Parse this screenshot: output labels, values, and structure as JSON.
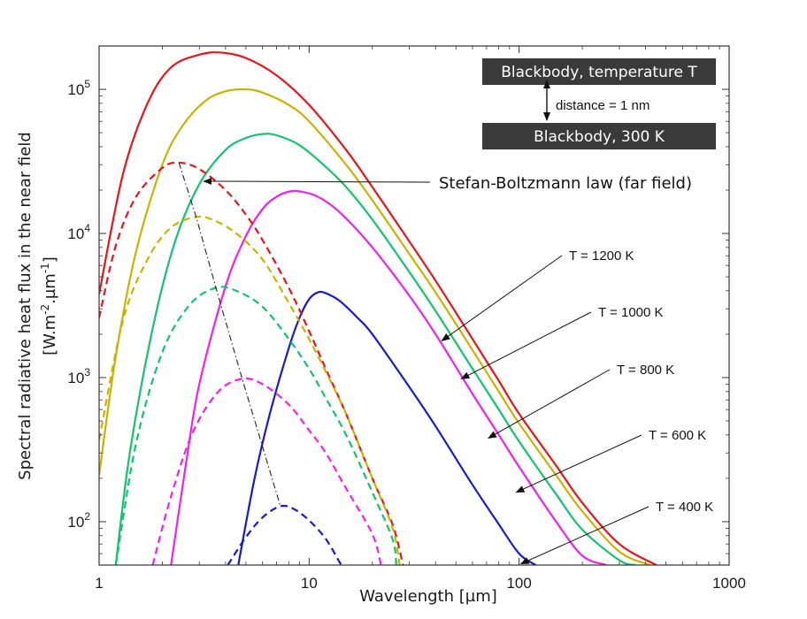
{
  "chart_data": {
    "type": "line",
    "xlabel": "Wavelength [µm]",
    "ylabel_line1": "Spectral radiative heat flux in the near field",
    "ylabel_line2_parts": [
      "[W.m",
      "-2",
      ".µm",
      "-1",
      "]"
    ],
    "x_scale": "log",
    "y_scale": "log",
    "xlim": [
      1,
      1000
    ],
    "ylim": [
      50,
      200000
    ],
    "grid": false,
    "x_ticks": [
      {
        "value": 1,
        "label": "1"
      },
      {
        "value": 10,
        "label": "10"
      },
      {
        "value": 100,
        "label": "100"
      },
      {
        "value": 1000,
        "label": "1000"
      }
    ],
    "y_ticks": [
      {
        "value": 100,
        "base": "10",
        "exp": "2"
      },
      {
        "value": 1000,
        "base": "10",
        "exp": "3"
      },
      {
        "value": 10000,
        "base": "10",
        "exp": "4"
      },
      {
        "value": 100000,
        "base": "10",
        "exp": "5"
      }
    ],
    "series": [
      {
        "temperature": 1200,
        "color": "#e8141c",
        "style": "solid",
        "points": [
          [
            1,
            3800
          ],
          [
            1.3,
            26000
          ],
          [
            1.7,
            80000
          ],
          [
            2.2,
            142000
          ],
          [
            3,
            174000
          ],
          [
            3.8,
            180000
          ],
          [
            5,
            165000
          ],
          [
            7,
            125000
          ],
          [
            10,
            78000
          ],
          [
            15,
            38000
          ],
          [
            20,
            21000
          ],
          [
            30,
            8800
          ],
          [
            40,
            4700
          ],
          [
            60,
            1850
          ],
          [
            80,
            950
          ],
          [
            100,
            560
          ],
          [
            150,
            245
          ],
          [
            200,
            135
          ],
          [
            300,
            70
          ],
          [
            450,
            50
          ]
        ]
      },
      {
        "temperature": 1000,
        "color": "#c8b400",
        "style": "solid",
        "points": [
          [
            1,
            210
          ],
          [
            1.2,
            1400
          ],
          [
            1.5,
            7500
          ],
          [
            2,
            30000
          ],
          [
            2.5,
            56000
          ],
          [
            3.2,
            83000
          ],
          [
            4,
            97000
          ],
          [
            5,
            100000
          ],
          [
            6,
            95000
          ],
          [
            8,
            78000
          ],
          [
            10,
            60000
          ],
          [
            15,
            30000
          ],
          [
            20,
            17000
          ],
          [
            30,
            7200
          ],
          [
            40,
            3900
          ],
          [
            60,
            1550
          ],
          [
            80,
            800
          ],
          [
            100,
            480
          ],
          [
            150,
            210
          ],
          [
            200,
            118
          ],
          [
            300,
            62
          ],
          [
            420,
            50
          ]
        ]
      },
      {
        "temperature": 800,
        "color": "#12c46e",
        "style": "solid",
        "points": [
          [
            1.2,
            50
          ],
          [
            1.4,
            300
          ],
          [
            1.8,
            2200
          ],
          [
            2.3,
            8800
          ],
          [
            3,
            22000
          ],
          [
            4,
            38000
          ],
          [
            5,
            46000
          ],
          [
            6,
            49000
          ],
          [
            7,
            48000
          ],
          [
            9,
            41000
          ],
          [
            12,
            29000
          ],
          [
            15,
            21000
          ],
          [
            20,
            12500
          ],
          [
            30,
            5400
          ],
          [
            40,
            2900
          ],
          [
            60,
            1150
          ],
          [
            80,
            600
          ],
          [
            100,
            360
          ],
          [
            150,
            155
          ],
          [
            200,
            88
          ],
          [
            300,
            54
          ],
          [
            360,
            50
          ]
        ]
      },
      {
        "temperature": 600,
        "color": "#ee22ee",
        "style": "solid",
        "points": [
          [
            2.2,
            50
          ],
          [
            2.6,
            260
          ],
          [
            3,
            900
          ],
          [
            4,
            4300
          ],
          [
            5,
            9600
          ],
          [
            6,
            14800
          ],
          [
            7,
            18000
          ],
          [
            8,
            19500
          ],
          [
            9,
            19600
          ],
          [
            11,
            18000
          ],
          [
            14,
            14000
          ],
          [
            20,
            8000
          ],
          [
            30,
            3700
          ],
          [
            40,
            2000
          ],
          [
            60,
            770
          ],
          [
            80,
            400
          ],
          [
            100,
            240
          ],
          [
            150,
            100
          ],
          [
            200,
            58
          ],
          [
            260,
            50
          ]
        ]
      },
      {
        "temperature": 400,
        "color": "#1a1acc",
        "style": "solid",
        "points": [
          [
            4.6,
            50
          ],
          [
            5.5,
            200
          ],
          [
            6.5,
            560
          ],
          [
            8,
            1600
          ],
          [
            9,
            2600
          ],
          [
            10,
            3500
          ],
          [
            11,
            3900
          ],
          [
            12,
            3850
          ],
          [
            14,
            3400
          ],
          [
            17,
            2600
          ],
          [
            20,
            2000
          ],
          [
            30,
            860
          ],
          [
            40,
            460
          ],
          [
            60,
            180
          ],
          [
            80,
            96
          ],
          [
            100,
            60
          ],
          [
            120,
            50
          ]
        ]
      },
      {
        "temperature": 1200,
        "color": "#e8141c",
        "style": "dashed",
        "points": [
          [
            1,
            2600
          ],
          [
            1.2,
            8200
          ],
          [
            1.5,
            18000
          ],
          [
            2,
            28500
          ],
          [
            2.4,
            31000
          ],
          [
            3,
            28000
          ],
          [
            4,
            20000
          ],
          [
            5,
            13500
          ],
          [
            6,
            9000
          ],
          [
            8,
            4200
          ],
          [
            10,
            2100
          ],
          [
            12,
            1150
          ],
          [
            15,
            560
          ],
          [
            20,
            200
          ],
          [
            25,
            95
          ],
          [
            28,
            50
          ]
        ]
      },
      {
        "temperature": 1000,
        "color": "#c8b400",
        "style": "dashed",
        "points": [
          [
            1,
            370
          ],
          [
            1.3,
            2500
          ],
          [
            1.7,
            6600
          ],
          [
            2.2,
            11000
          ],
          [
            2.9,
            13000
          ],
          [
            3.5,
            12400
          ],
          [
            4.5,
            10000
          ],
          [
            6,
            6600
          ],
          [
            8,
            3300
          ],
          [
            10,
            1850
          ],
          [
            12,
            1100
          ],
          [
            15,
            560
          ],
          [
            20,
            200
          ],
          [
            25,
            90
          ],
          [
            27,
            50
          ]
        ]
      },
      {
        "temperature": 800,
        "color": "#12c46e",
        "style": "dashed",
        "points": [
          [
            1.2,
            50
          ],
          [
            1.5,
            350
          ],
          [
            2,
            1500
          ],
          [
            2.7,
            3200
          ],
          [
            3.6,
            4200
          ],
          [
            4.5,
            4000
          ],
          [
            6,
            3100
          ],
          [
            8,
            1850
          ],
          [
            10,
            1150
          ],
          [
            12,
            720
          ],
          [
            15,
            400
          ],
          [
            20,
            160
          ],
          [
            25,
            75
          ],
          [
            26,
            50
          ]
        ]
      },
      {
        "temperature": 600,
        "color": "#ee22ee",
        "style": "dashed",
        "points": [
          [
            1.8,
            50
          ],
          [
            2.2,
            150
          ],
          [
            2.8,
            420
          ],
          [
            3.7,
            800
          ],
          [
            4.8,
            980
          ],
          [
            6,
            900
          ],
          [
            8,
            650
          ],
          [
            10,
            430
          ],
          [
            12,
            300
          ],
          [
            15,
            170
          ],
          [
            20,
            82
          ],
          [
            22,
            50
          ]
        ]
      },
      {
        "temperature": 400,
        "color": "#1a1acc",
        "style": "dashed",
        "points": [
          [
            4.1,
            50
          ],
          [
            5,
            78
          ],
          [
            6,
            107
          ],
          [
            7.3,
            128
          ],
          [
            8.5,
            122
          ],
          [
            10,
            102
          ],
          [
            12,
            76
          ],
          [
            14,
            52
          ],
          [
            14.3,
            50
          ]
        ]
      }
    ],
    "stefan_boltzmann_line": {
      "points": [
        [
          2.4,
          31000
        ],
        [
          2.9,
          13000
        ],
        [
          3.6,
          4200
        ],
        [
          4.8,
          980
        ],
        [
          7.3,
          128
        ]
      ],
      "color": "#222222",
      "style": "dashdot"
    },
    "annotations": [
      {
        "text": "T = 1200 K",
        "target": [
          42,
          1800
        ]
      },
      {
        "text": "T = 1000 K",
        "target": [
          52,
          980
        ]
      },
      {
        "text": "T = 800 K",
        "target": [
          70,
          380
        ]
      },
      {
        "text": "T = 600 K",
        "target": [
          95,
          160
        ]
      },
      {
        "text": "T = 400 K",
        "target": [
          100,
          51
        ]
      }
    ],
    "stefan_boltzmann_label": "Stefan-Boltzmann law (far field)",
    "inset": {
      "top_box": "Blackbody, temperature T",
      "distance": "distance = 1 nm",
      "bottom_box": "Blackbody, 300 K"
    },
    "colors": {
      "box_fill": "#3a3a3a",
      "axis": "#333333"
    }
  }
}
